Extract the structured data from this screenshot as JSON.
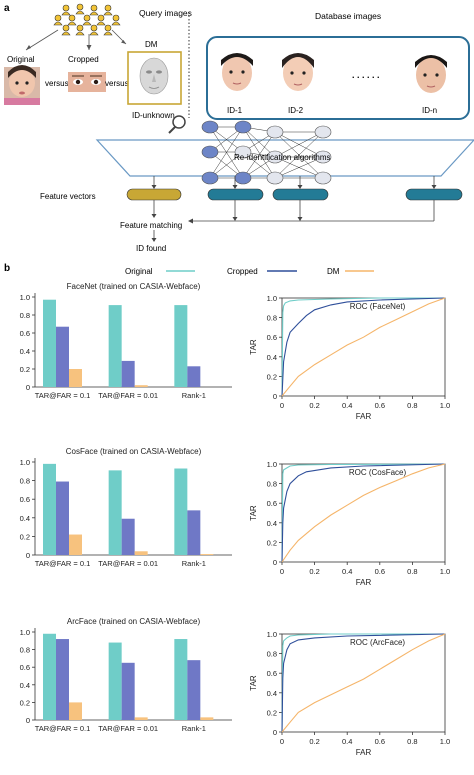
{
  "panel_a": {
    "letter": "a",
    "query_title": "Query images",
    "database_title": "Database images",
    "original_label": "Original",
    "cropped_label": "Cropped",
    "dm_label": "DM",
    "versus_label": "versus",
    "id_unknown_label": "ID-unknown",
    "ids": [
      "ID-1",
      "ID-2",
      "ID-n"
    ],
    "ellipsis": ". . . . . .",
    "algorithms_label": "Re-identification algorithms",
    "feature_vectors_label": "Feature vectors",
    "feature_matching_label": "Feature matching",
    "id_found_label": "ID found"
  },
  "panel_b": {
    "letter": "b",
    "legend": [
      {
        "name": "Original",
        "color": "#6fcdc8"
      },
      {
        "name": "Cropped",
        "color": "#2f4f9a"
      },
      {
        "name": "DM",
        "color": "#f5b56a"
      }
    ]
  },
  "colors": {
    "original": "#6fcdc8",
    "cropped_bar": "#6f78c6",
    "dm": "#f7c27e",
    "cropped_line": "#2f4f9a",
    "dm_line": "#f5b56a",
    "gold": "#c8a735",
    "teal": "#237b96",
    "db_border": "#2b6e96",
    "wing": "#6a99c4"
  },
  "chart_data": [
    {
      "type": "bar",
      "title": "FaceNet (trained on CASIA-Webface)",
      "categories": [
        "TAR@FAR = 0.1",
        "TAR@FAR = 0.01",
        "Rank-1"
      ],
      "series": [
        {
          "name": "Original",
          "values": [
            0.97,
            0.91,
            0.91
          ]
        },
        {
          "name": "Cropped",
          "values": [
            0.67,
            0.29,
            0.23
          ]
        },
        {
          "name": "DM",
          "values": [
            0.2,
            0.02,
            0.0
          ]
        }
      ],
      "ylim": [
        0,
        1.0
      ],
      "yticks": [
        "0",
        "0.2",
        "0.4",
        "0.6",
        "0.8",
        "1.0"
      ]
    },
    {
      "type": "line",
      "title": "ROC (FaceNet)",
      "xlabel": "FAR",
      "ylabel": "TAR",
      "xlim": [
        0,
        1.0
      ],
      "ylim": [
        0,
        1.0
      ],
      "ticks": [
        "0",
        "0.2",
        "0.4",
        "0.6",
        "0.8",
        "1.0"
      ],
      "series": [
        {
          "name": "Original",
          "points": [
            [
              0,
              0
            ],
            [
              0.005,
              0.85
            ],
            [
              0.01,
              0.92
            ],
            [
              0.02,
              0.95
            ],
            [
              0.05,
              0.97
            ],
            [
              0.1,
              0.98
            ],
            [
              0.3,
              0.99
            ],
            [
              0.6,
              1.0
            ],
            [
              1.0,
              1.0
            ]
          ]
        },
        {
          "name": "Cropped",
          "points": [
            [
              0,
              0
            ],
            [
              0.01,
              0.35
            ],
            [
              0.03,
              0.55
            ],
            [
              0.05,
              0.65
            ],
            [
              0.1,
              0.74
            ],
            [
              0.15,
              0.82
            ],
            [
              0.2,
              0.88
            ],
            [
              0.3,
              0.93
            ],
            [
              0.4,
              0.96
            ],
            [
              0.6,
              0.98
            ],
            [
              1.0,
              1.0
            ]
          ]
        },
        {
          "name": "DM",
          "points": [
            [
              0,
              0
            ],
            [
              0.05,
              0.1
            ],
            [
              0.1,
              0.2
            ],
            [
              0.2,
              0.32
            ],
            [
              0.3,
              0.42
            ],
            [
              0.4,
              0.52
            ],
            [
              0.5,
              0.6
            ],
            [
              0.6,
              0.7
            ],
            [
              0.7,
              0.78
            ],
            [
              0.8,
              0.86
            ],
            [
              0.9,
              0.94
            ],
            [
              1.0,
              1.0
            ]
          ]
        }
      ]
    },
    {
      "type": "bar",
      "title": "CosFace (trained on CASIA-Webface)",
      "categories": [
        "TAR@FAR = 0.1",
        "TAR@FAR = 0.01",
        "Rank-1"
      ],
      "series": [
        {
          "name": "Original",
          "values": [
            0.98,
            0.91,
            0.93
          ]
        },
        {
          "name": "Cropped",
          "values": [
            0.79,
            0.39,
            0.48
          ]
        },
        {
          "name": "DM",
          "values": [
            0.22,
            0.04,
            0.01
          ]
        }
      ],
      "ylim": [
        0,
        1.0
      ],
      "yticks": [
        "0",
        "0.2",
        "0.4",
        "0.6",
        "0.8",
        "1.0"
      ]
    },
    {
      "type": "line",
      "title": "ROC (CosFace)",
      "xlabel": "FAR",
      "ylabel": "TAR",
      "xlim": [
        0,
        1.0
      ],
      "ylim": [
        0,
        1.0
      ],
      "ticks": [
        "0",
        "0.2",
        "0.4",
        "0.6",
        "0.8",
        "1.0"
      ],
      "series": [
        {
          "name": "Original",
          "points": [
            [
              0,
              0
            ],
            [
              0.005,
              0.9
            ],
            [
              0.01,
              0.94
            ],
            [
              0.03,
              0.96
            ],
            [
              0.05,
              0.98
            ],
            [
              0.1,
              0.99
            ],
            [
              0.3,
              0.995
            ],
            [
              1.0,
              1.0
            ]
          ]
        },
        {
          "name": "Cropped",
          "points": [
            [
              0,
              0
            ],
            [
              0.005,
              0.4
            ],
            [
              0.01,
              0.55
            ],
            [
              0.03,
              0.72
            ],
            [
              0.05,
              0.8
            ],
            [
              0.1,
              0.88
            ],
            [
              0.15,
              0.92
            ],
            [
              0.3,
              0.96
            ],
            [
              0.5,
              0.98
            ],
            [
              1.0,
              1.0
            ]
          ]
        },
        {
          "name": "DM",
          "points": [
            [
              0,
              0
            ],
            [
              0.05,
              0.12
            ],
            [
              0.1,
              0.22
            ],
            [
              0.2,
              0.36
            ],
            [
              0.3,
              0.48
            ],
            [
              0.4,
              0.58
            ],
            [
              0.5,
              0.68
            ],
            [
              0.6,
              0.76
            ],
            [
              0.7,
              0.83
            ],
            [
              0.8,
              0.9
            ],
            [
              0.9,
              0.96
            ],
            [
              1.0,
              1.0
            ]
          ]
        }
      ]
    },
    {
      "type": "bar",
      "title": "ArcFace (trained on CASIA-Webface)",
      "categories": [
        "TAR@FAR = 0.1",
        "TAR@FAR = 0.01",
        "Rank-1"
      ],
      "series": [
        {
          "name": "Original",
          "values": [
            0.98,
            0.88,
            0.92
          ]
        },
        {
          "name": "Cropped",
          "values": [
            0.92,
            0.65,
            0.68
          ]
        },
        {
          "name": "DM",
          "values": [
            0.2,
            0.03,
            0.03
          ]
        }
      ],
      "ylim": [
        0,
        1.0
      ],
      "yticks": [
        "0",
        "0.2",
        "0.4",
        "0.6",
        "0.8",
        "1.0"
      ]
    },
    {
      "type": "line",
      "title": "ROC (ArcFace)",
      "xlabel": "FAR",
      "ylabel": "TAR",
      "xlim": [
        0,
        1.0
      ],
      "ylim": [
        0,
        1.0
      ],
      "ticks": [
        "0",
        "0.2",
        "0.4",
        "0.6",
        "0.8",
        "1.0"
      ],
      "series": [
        {
          "name": "Original",
          "points": [
            [
              0,
              0
            ],
            [
              0.005,
              0.88
            ],
            [
              0.01,
              0.93
            ],
            [
              0.03,
              0.96
            ],
            [
              0.05,
              0.98
            ],
            [
              0.1,
              0.99
            ],
            [
              0.3,
              1.0
            ],
            [
              1.0,
              1.0
            ]
          ]
        },
        {
          "name": "Cropped",
          "points": [
            [
              0,
              0
            ],
            [
              0.005,
              0.55
            ],
            [
              0.01,
              0.7
            ],
            [
              0.03,
              0.84
            ],
            [
              0.05,
              0.9
            ],
            [
              0.1,
              0.94
            ],
            [
              0.2,
              0.96
            ],
            [
              0.4,
              0.98
            ],
            [
              1.0,
              1.0
            ]
          ]
        },
        {
          "name": "DM",
          "points": [
            [
              0,
              0
            ],
            [
              0.05,
              0.1
            ],
            [
              0.1,
              0.2
            ],
            [
              0.2,
              0.3
            ],
            [
              0.3,
              0.38
            ],
            [
              0.4,
              0.46
            ],
            [
              0.5,
              0.54
            ],
            [
              0.6,
              0.64
            ],
            [
              0.7,
              0.74
            ],
            [
              0.8,
              0.84
            ],
            [
              0.9,
              0.93
            ],
            [
              1.0,
              1.0
            ]
          ]
        }
      ]
    }
  ]
}
